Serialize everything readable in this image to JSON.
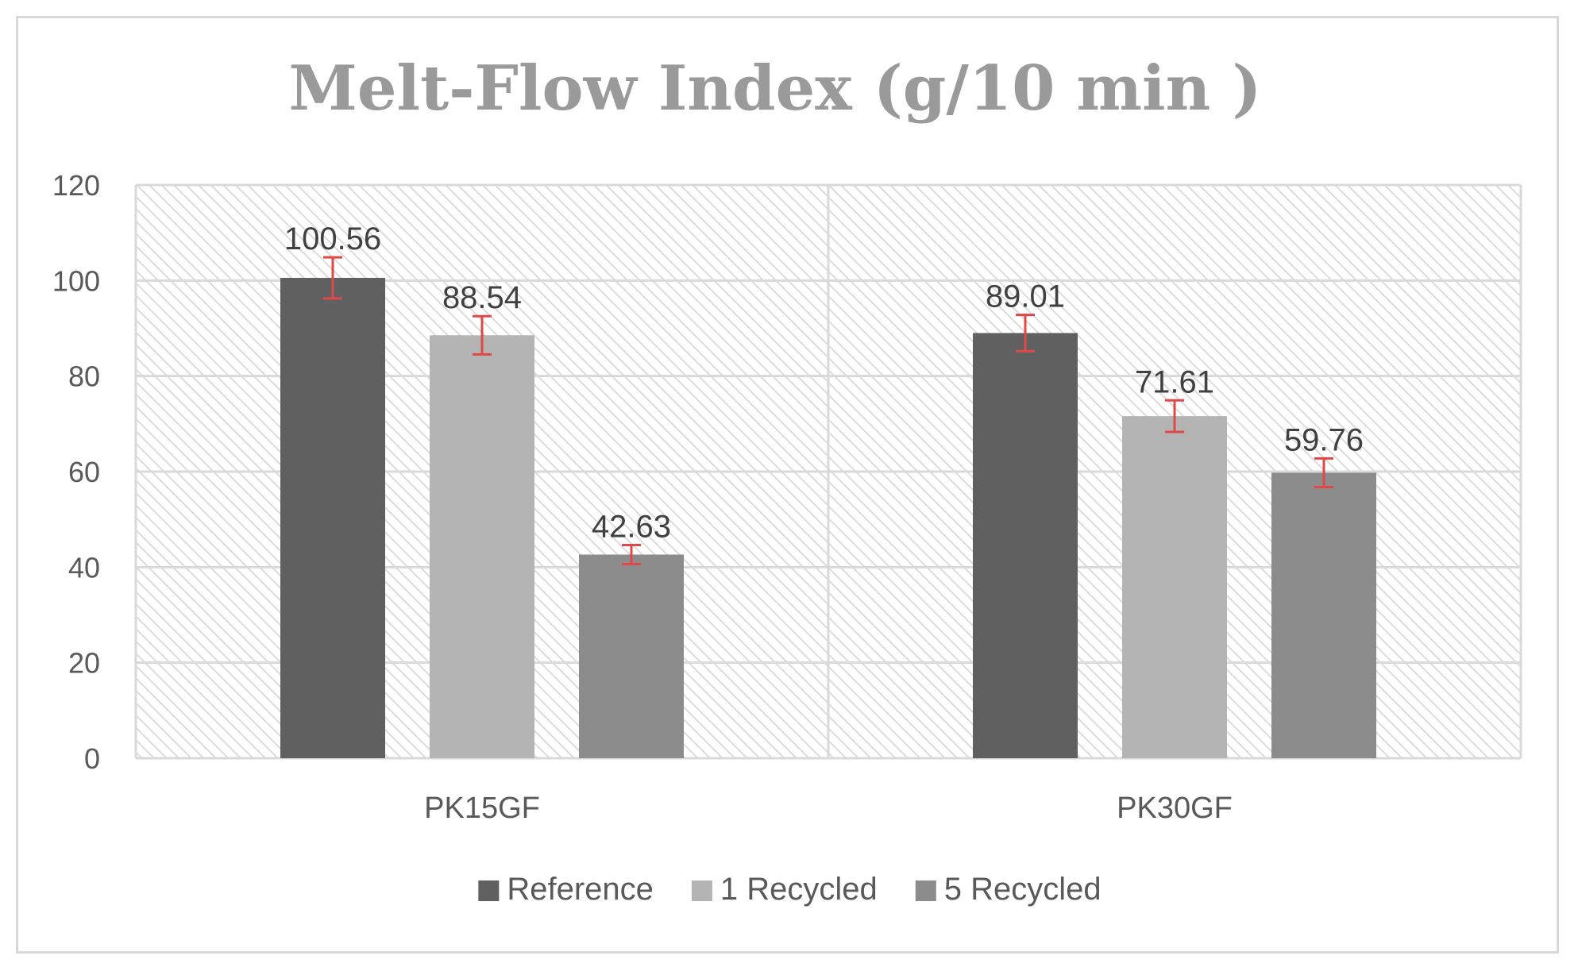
{
  "chart_data": {
    "type": "bar",
    "title": "Melt-Flow Index (g/10 min )",
    "categories": [
      "PK15GF",
      "PK30GF"
    ],
    "series": [
      {
        "name": "Reference",
        "values": [
          100.56,
          89.01
        ],
        "errors": [
          4.3,
          3.8
        ],
        "color": "#606060"
      },
      {
        "name": "1 Recycled",
        "values": [
          88.54,
          71.61
        ],
        "errors": [
          4.0,
          3.3
        ],
        "color": "#b4b4b4"
      },
      {
        "name": "5 Recycled",
        "values": [
          42.63,
          59.76
        ],
        "errors": [
          2.0,
          3.0
        ],
        "color": "#8c8c8c"
      }
    ],
    "data_labels": [
      [
        "100.56",
        "89.01"
      ],
      [
        "88.54",
        "71.61"
      ],
      [
        "42.63",
        "59.76"
      ]
    ],
    "yticks": [
      "0",
      "20",
      "40",
      "60",
      "80",
      "100",
      "120"
    ],
    "ylim": [
      0,
      120
    ],
    "grid": true,
    "legend_position": "bottom",
    "error_bar_color": "#e04848",
    "plot_pattern": "diagonal-hatch"
  }
}
